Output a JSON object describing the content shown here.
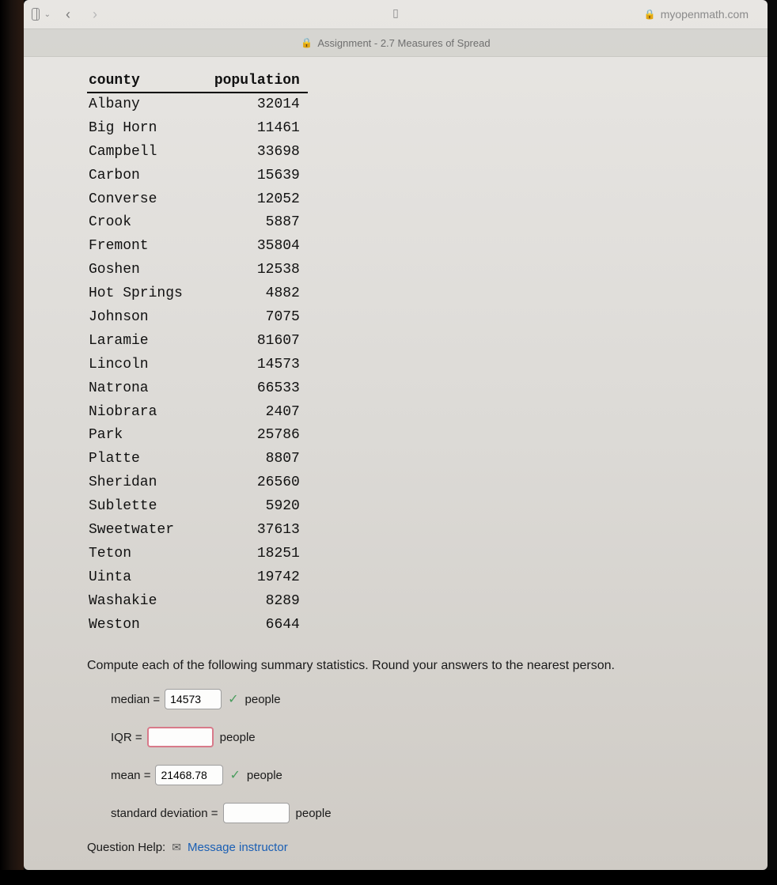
{
  "browser": {
    "url_host": "myopenmath.com",
    "tab_title": "Assignment - 2.7 Measures of Spread"
  },
  "table": {
    "columns": {
      "county": "county",
      "population": "population"
    },
    "rows": [
      {
        "county": "Albany",
        "population": "32014"
      },
      {
        "county": "Big Horn",
        "population": "11461"
      },
      {
        "county": "Campbell",
        "population": "33698"
      },
      {
        "county": "Carbon",
        "population": "15639"
      },
      {
        "county": "Converse",
        "population": "12052"
      },
      {
        "county": "Crook",
        "population": "5887"
      },
      {
        "county": "Fremont",
        "population": "35804"
      },
      {
        "county": "Goshen",
        "population": "12538"
      },
      {
        "county": "Hot Springs",
        "population": "4882"
      },
      {
        "county": "Johnson",
        "population": "7075"
      },
      {
        "county": "Laramie",
        "population": "81607"
      },
      {
        "county": "Lincoln",
        "population": "14573"
      },
      {
        "county": "Natrona",
        "population": "66533"
      },
      {
        "county": "Niobrara",
        "population": "2407"
      },
      {
        "county": "Park",
        "population": "25786"
      },
      {
        "county": "Platte",
        "population": "8807"
      },
      {
        "county": "Sheridan",
        "population": "26560"
      },
      {
        "county": "Sublette",
        "population": "5920"
      },
      {
        "county": "Sweetwater",
        "population": "37613"
      },
      {
        "county": "Teton",
        "population": "18251"
      },
      {
        "county": "Uinta",
        "population": "19742"
      },
      {
        "county": "Washakie",
        "population": "8289"
      },
      {
        "county": "Weston",
        "population": "6644"
      }
    ]
  },
  "instruction": "Compute each of the following summary statistics. Round your answers to the nearest person.",
  "answers": {
    "median": {
      "label": "median =",
      "value": "14573",
      "correct": true,
      "unit": "people"
    },
    "iqr": {
      "label": "IQR =",
      "value": "",
      "correct": false,
      "unit": "people"
    },
    "mean": {
      "label": "mean =",
      "value": "21468.78",
      "correct": true,
      "unit": "people"
    },
    "stddev": {
      "label": "standard deviation =",
      "value": "",
      "correct": false,
      "unit": "people"
    }
  },
  "help": {
    "label": "Question Help:",
    "link": "Message instructor"
  }
}
